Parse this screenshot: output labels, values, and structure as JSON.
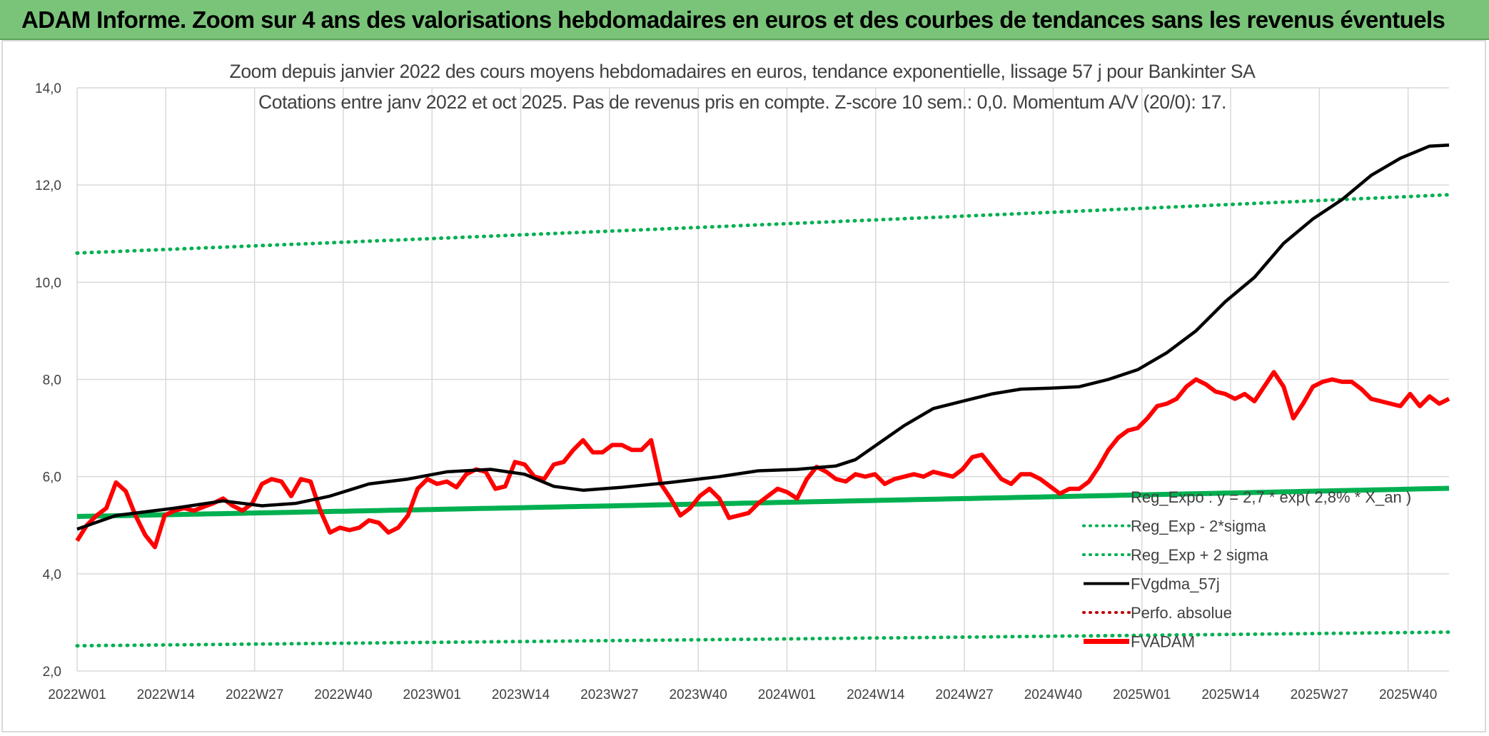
{
  "banner": {
    "title": "ADAM Informe. Zoom sur 4 ans des valorisations hebdomadaires en euros et des courbes de tendances sans les revenus éventuels"
  },
  "colors": {
    "banner_bg": "#7ac47a",
    "green": "#00b050",
    "red": "#ff0000",
    "black": "#000000",
    "grid": "#d9d9d9",
    "axis_text": "#404040"
  },
  "chart_data": {
    "type": "line",
    "title_lines": [
      "Zoom depuis janvier 2022 des cours moyens hebdomadaires en euros, tendance exponentielle, lissage 57 j pour Bankinter SA",
      "Cotations entre janv 2022 et oct 2025. Pas de revenus pris en compte. Z-score 10 sem.: 0,0. Momentum A/V (20/0): 17."
    ],
    "ylim": [
      2.0,
      14.0
    ],
    "y_ticks": [
      "2,0",
      "4,0",
      "6,0",
      "8,0",
      "10,0",
      "12,0",
      "14,0"
    ],
    "x_tick_labels": [
      "2022W01",
      "2022W14",
      "2022W27",
      "2022W40",
      "2023W01",
      "2023W14",
      "2023W27",
      "2023W40",
      "2024W01",
      "2024W14",
      "2024W27",
      "2024W40",
      "2025W01",
      "2025W14",
      "2025W27",
      "2025W40"
    ],
    "n_weeks": 202,
    "grid": true,
    "legend_position": "bottom-right",
    "legend": [
      {
        "label": "Reg_Expo : y = 2,7 * exp( 2,8% * X_an )",
        "color": "#00b050",
        "style": "solid-thick"
      },
      {
        "label": "Reg_Exp - 2*sigma",
        "color": "#00b050",
        "style": "dotted"
      },
      {
        "label": "Reg_Exp + 2 sigma",
        "color": "#00b050",
        "style": "dotted"
      },
      {
        "label": "FVgdma_57j",
        "color": "#000000",
        "style": "solid"
      },
      {
        "label": "Perfo. absolue",
        "color": "#c00000",
        "style": "dotted"
      },
      {
        "label": "FVADAM",
        "color": "#ff0000",
        "style": "solid-thick"
      }
    ],
    "series": [
      {
        "name": "Reg_Expo : y = 2,7 * exp( 2,8% * X_an )",
        "kind": "exp",
        "start": 5.18,
        "end": 5.76
      },
      {
        "name": "Reg_Exp - 2*sigma",
        "kind": "exp",
        "start": 2.52,
        "end": 2.8
      },
      {
        "name": "Reg_Exp + 2 sigma",
        "kind": "exp",
        "start": 10.6,
        "end": 11.8
      },
      {
        "name": "FVgdma_57j",
        "kind": "points",
        "points": [
          [
            0,
            4.92
          ],
          [
            8,
            5.2
          ],
          [
            20,
            5.35
          ],
          [
            30,
            5.5
          ],
          [
            38,
            5.4
          ],
          [
            45,
            5.45
          ],
          [
            52,
            5.6
          ],
          [
            60,
            5.85
          ],
          [
            68,
            5.95
          ],
          [
            76,
            6.1
          ],
          [
            85,
            6.15
          ],
          [
            92,
            6.05
          ],
          [
            98,
            5.8
          ],
          [
            104,
            5.72
          ],
          [
            112,
            5.78
          ],
          [
            122,
            5.88
          ],
          [
            132,
            6.0
          ],
          [
            140,
            6.12
          ],
          [
            148,
            6.15
          ],
          [
            156,
            6.22
          ],
          [
            160,
            6.35
          ],
          [
            165,
            6.7
          ],
          [
            170,
            7.05
          ],
          [
            176,
            7.4
          ],
          [
            182,
            7.55
          ],
          [
            188,
            7.7
          ],
          [
            194,
            7.8
          ],
          [
            200,
            7.82
          ],
          [
            206,
            7.85
          ],
          [
            212,
            8.0
          ],
          [
            218,
            8.2
          ],
          [
            224,
            8.55
          ],
          [
            230,
            9.0
          ],
          [
            236,
            9.6
          ],
          [
            242,
            10.1
          ],
          [
            248,
            10.8
          ],
          [
            254,
            11.3
          ],
          [
            260,
            11.7
          ],
          [
            266,
            12.2
          ],
          [
            272,
            12.55
          ],
          [
            278,
            12.8
          ],
          [
            282,
            12.82
          ]
        ]
      },
      {
        "name": "FVADAM",
        "kind": "points",
        "points": [
          [
            0,
            4.68
          ],
          [
            2,
            5.0
          ],
          [
            4,
            5.2
          ],
          [
            6,
            5.35
          ],
          [
            8,
            5.88
          ],
          [
            10,
            5.7
          ],
          [
            12,
            5.2
          ],
          [
            14,
            4.8
          ],
          [
            16,
            4.55
          ],
          [
            18,
            5.2
          ],
          [
            20,
            5.3
          ],
          [
            22,
            5.35
          ],
          [
            24,
            5.3
          ],
          [
            26,
            5.38
          ],
          [
            28,
            5.45
          ],
          [
            30,
            5.55
          ],
          [
            32,
            5.4
          ],
          [
            34,
            5.3
          ],
          [
            36,
            5.45
          ],
          [
            38,
            5.85
          ],
          [
            40,
            5.95
          ],
          [
            42,
            5.9
          ],
          [
            44,
            5.6
          ],
          [
            46,
            5.95
          ],
          [
            48,
            5.9
          ],
          [
            50,
            5.3
          ],
          [
            52,
            4.85
          ],
          [
            54,
            4.95
          ],
          [
            56,
            4.9
          ],
          [
            58,
            4.95
          ],
          [
            60,
            5.1
          ],
          [
            62,
            5.05
          ],
          [
            64,
            4.85
          ],
          [
            66,
            4.95
          ],
          [
            68,
            5.2
          ],
          [
            70,
            5.75
          ],
          [
            72,
            5.95
          ],
          [
            74,
            5.85
          ],
          [
            76,
            5.9
          ],
          [
            78,
            5.78
          ],
          [
            80,
            6.05
          ],
          [
            82,
            6.15
          ],
          [
            84,
            6.1
          ],
          [
            86,
            5.75
          ],
          [
            88,
            5.8
          ],
          [
            90,
            6.3
          ],
          [
            92,
            6.25
          ],
          [
            94,
            6.0
          ],
          [
            96,
            5.95
          ],
          [
            98,
            6.25
          ],
          [
            100,
            6.3
          ],
          [
            102,
            6.55
          ],
          [
            104,
            6.75
          ],
          [
            106,
            6.5
          ],
          [
            108,
            6.5
          ],
          [
            110,
            6.65
          ],
          [
            112,
            6.65
          ],
          [
            114,
            6.55
          ],
          [
            116,
            6.55
          ],
          [
            118,
            6.75
          ],
          [
            120,
            5.85
          ],
          [
            122,
            5.55
          ],
          [
            124,
            5.2
          ],
          [
            126,
            5.35
          ],
          [
            128,
            5.6
          ],
          [
            130,
            5.75
          ],
          [
            132,
            5.55
          ],
          [
            134,
            5.15
          ],
          [
            136,
            5.2
          ],
          [
            138,
            5.25
          ],
          [
            140,
            5.45
          ],
          [
            142,
            5.6
          ],
          [
            144,
            5.75
          ],
          [
            146,
            5.68
          ],
          [
            148,
            5.55
          ],
          [
            150,
            5.95
          ],
          [
            152,
            6.2
          ],
          [
            154,
            6.1
          ],
          [
            156,
            5.95
          ],
          [
            158,
            5.9
          ],
          [
            160,
            6.05
          ],
          [
            162,
            6.0
          ],
          [
            164,
            6.05
          ],
          [
            166,
            5.85
          ],
          [
            168,
            5.95
          ],
          [
            170,
            6.0
          ],
          [
            172,
            6.05
          ],
          [
            174,
            6.0
          ],
          [
            176,
            6.1
          ],
          [
            178,
            6.05
          ],
          [
            180,
            6.0
          ],
          [
            182,
            6.15
          ],
          [
            184,
            6.4
          ],
          [
            186,
            6.45
          ],
          [
            188,
            6.2
          ],
          [
            190,
            5.95
          ],
          [
            192,
            5.85
          ],
          [
            194,
            6.05
          ],
          [
            196,
            6.05
          ],
          [
            198,
            5.95
          ],
          [
            200,
            5.8
          ],
          [
            202,
            5.65
          ],
          [
            204,
            5.75
          ],
          [
            206,
            5.75
          ],
          [
            208,
            5.9
          ],
          [
            210,
            6.2
          ],
          [
            212,
            6.55
          ],
          [
            214,
            6.8
          ],
          [
            216,
            6.95
          ],
          [
            218,
            7.0
          ],
          [
            220,
            7.2
          ],
          [
            222,
            7.45
          ],
          [
            224,
            7.5
          ],
          [
            226,
            7.6
          ],
          [
            228,
            7.85
          ],
          [
            230,
            8.0
          ],
          [
            232,
            7.9
          ],
          [
            234,
            7.75
          ],
          [
            236,
            7.7
          ],
          [
            238,
            7.6
          ],
          [
            240,
            7.7
          ],
          [
            242,
            7.55
          ],
          [
            244,
            7.85
          ],
          [
            246,
            8.15
          ],
          [
            248,
            7.85
          ],
          [
            250,
            7.2
          ],
          [
            252,
            7.5
          ],
          [
            254,
            7.85
          ],
          [
            256,
            7.95
          ],
          [
            258,
            8.0
          ],
          [
            260,
            7.95
          ],
          [
            262,
            7.95
          ],
          [
            264,
            7.8
          ],
          [
            266,
            7.6
          ],
          [
            268,
            7.55
          ],
          [
            270,
            7.5
          ],
          [
            272,
            7.45
          ],
          [
            274,
            7.7
          ],
          [
            276,
            7.45
          ],
          [
            278,
            7.65
          ],
          [
            280,
            7.5
          ],
          [
            282,
            7.6
          ]
        ]
      }
    ]
  }
}
